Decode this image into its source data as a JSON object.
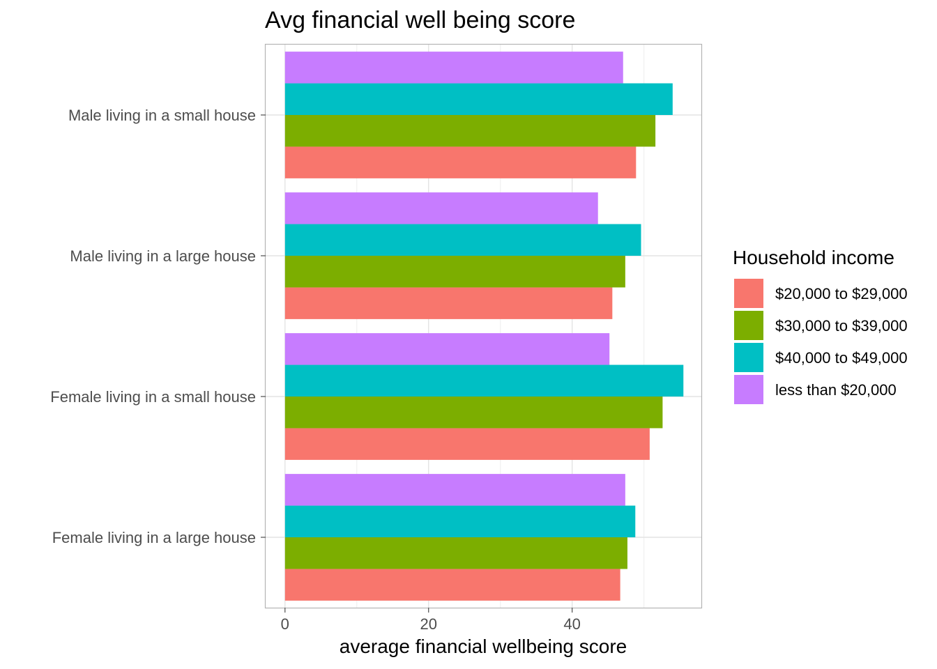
{
  "chart_data": {
    "type": "bar",
    "orientation": "horizontal",
    "title": "Avg financial well being score",
    "xlabel": "average financial wellbeing score",
    "ylabel": "",
    "xlim": [
      -2.7,
      58
    ],
    "x_ticks": [
      0,
      20,
      40
    ],
    "grid": true,
    "legend_position": "right",
    "legend_title": "Household income",
    "categories": [
      "Male living in a small house",
      "Male living in a large house",
      "Female living in a small house",
      "Female living in a large house"
    ],
    "series": [
      {
        "name": "$20,000 to $29,000",
        "color": "#F8766D",
        "values": [
          48.9,
          45.6,
          50.8,
          46.7
        ]
      },
      {
        "name": "$30,000 to $39,000",
        "color": "#7CAE00",
        "values": [
          51.6,
          47.4,
          52.6,
          47.7
        ]
      },
      {
        "name": "$40,000 to $49,000",
        "color": "#00BFC4",
        "values": [
          54.0,
          49.6,
          55.5,
          48.8
        ]
      },
      {
        "name": "less than $20,000",
        "color": "#C77CFF",
        "values": [
          47.1,
          43.6,
          45.2,
          47.4
        ]
      }
    ]
  }
}
